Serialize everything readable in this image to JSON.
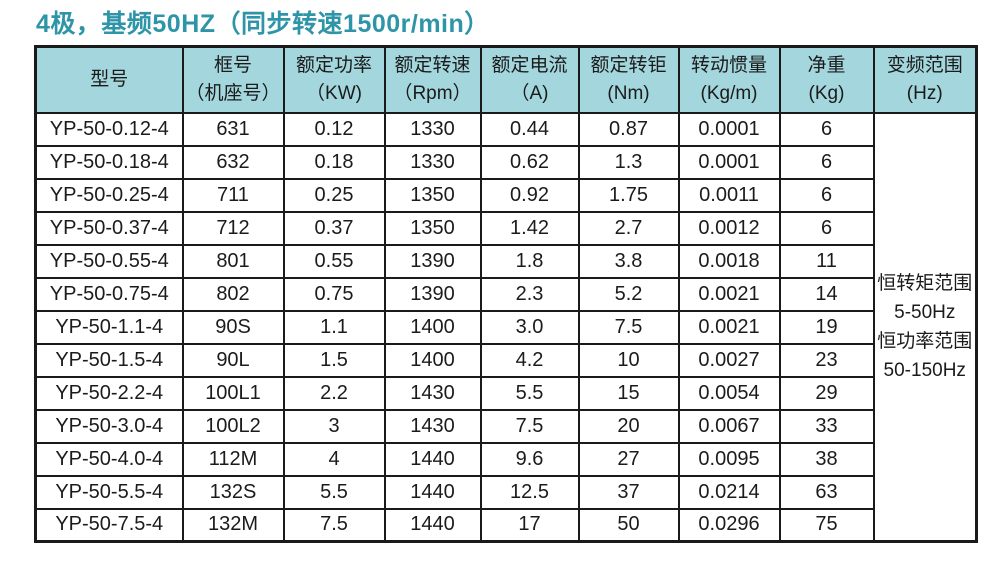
{
  "title": "4极，基频50HZ（同步转速1500r/min）",
  "colors": {
    "title_text": "#2e95a8",
    "header_background": "#a3d6dd",
    "border": "#1a1a1a",
    "cell_background": "#ffffff",
    "cell_text": "#1b1b1b"
  },
  "table": {
    "headers": [
      {
        "line1": "型号",
        "line2": ""
      },
      {
        "line1": "框号",
        "line2": "（机座号）"
      },
      {
        "line1": "额定功率",
        "line2": "（KW)"
      },
      {
        "line1": "额定转速",
        "line2": "（Rpm）"
      },
      {
        "line1": "额定电流",
        "line2": "（A)"
      },
      {
        "line1": "额定转钜",
        "line2": "(Nm)"
      },
      {
        "line1": "转动惯量",
        "line2": "(Kg/m)"
      },
      {
        "line1": "净重",
        "line2": "(Kg)"
      },
      {
        "line1": "变频范围",
        "line2": "(Hz)"
      }
    ],
    "rows": [
      [
        "YP-50-0.12-4",
        "631",
        "0.12",
        "1330",
        "0.44",
        "0.87",
        "0.0001",
        "6"
      ],
      [
        "YP-50-0.18-4",
        "632",
        "0.18",
        "1330",
        "0.62",
        "1.3",
        "0.0001",
        "6"
      ],
      [
        "YP-50-0.25-4",
        "711",
        "0.25",
        "1350",
        "0.92",
        "1.75",
        "0.0011",
        "6"
      ],
      [
        "YP-50-0.37-4",
        "712",
        "0.37",
        "1350",
        "1.42",
        "2.7",
        "0.0012",
        "6"
      ],
      [
        "YP-50-0.55-4",
        "801",
        "0.55",
        "1390",
        "1.8",
        "3.8",
        "0.0018",
        "11"
      ],
      [
        "YP-50-0.75-4",
        "802",
        "0.75",
        "1390",
        "2.3",
        "5.2",
        "0.0021",
        "14"
      ],
      [
        "YP-50-1.1-4",
        "90S",
        "1.1",
        "1400",
        "3.0",
        "7.5",
        "0.0021",
        "19"
      ],
      [
        "YP-50-1.5-4",
        "90L",
        "1.5",
        "1400",
        "4.2",
        "10",
        "0.0027",
        "23"
      ],
      [
        "YP-50-2.2-4",
        "100L1",
        "2.2",
        "1430",
        "5.5",
        "15",
        "0.0054",
        "29"
      ],
      [
        "YP-50-3.0-4",
        "100L2",
        "3",
        "1430",
        "7.5",
        "20",
        "0.0067",
        "33"
      ],
      [
        "YP-50-4.0-4",
        "112M",
        "4",
        "1440",
        "9.6",
        "27",
        "0.0095",
        "38"
      ],
      [
        "YP-50-5.5-4",
        "132S",
        "5.5",
        "1440",
        "12.5",
        "37",
        "0.0214",
        "63"
      ],
      [
        "YP-50-7.5-4",
        "132M",
        "7.5",
        "1440",
        "17",
        "50",
        "0.0296",
        "75"
      ]
    ],
    "frequency_range_cell": {
      "lines": [
        "恒转矩范围",
        "5-50Hz",
        "恒功率范围",
        "50-150Hz"
      ]
    }
  }
}
